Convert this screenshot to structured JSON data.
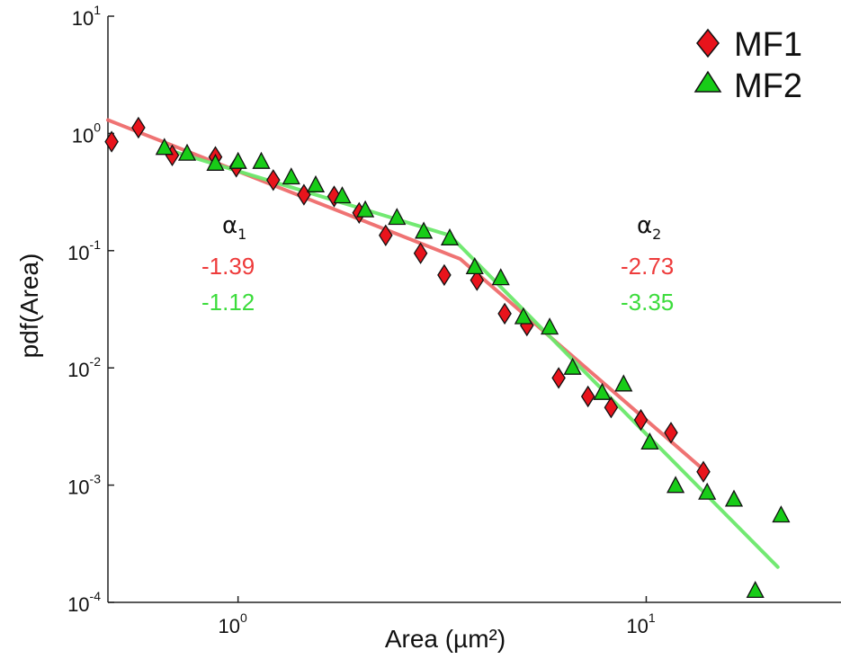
{
  "chart_data": {
    "type": "scatter",
    "title": "",
    "xlabel": "Area (µm²)",
    "ylabel": "pdf(Area)",
    "xscale": "log",
    "yscale": "log",
    "xlim": [
      0.48,
      30
    ],
    "ylim": [
      0.0001,
      10
    ],
    "x_ticks": [
      {
        "base": "10",
        "exp": "0",
        "value": 1
      },
      {
        "base": "10",
        "exp": "1",
        "value": 10
      }
    ],
    "y_ticks": [
      {
        "base": "10",
        "exp": "1",
        "value": 10
      },
      {
        "base": "10",
        "exp": "0",
        "value": 1
      },
      {
        "base": "10",
        "exp": "-1",
        "value": 0.1
      },
      {
        "base": "10",
        "exp": "-2",
        "value": 0.01
      },
      {
        "base": "10",
        "exp": "-3",
        "value": 0.001
      },
      {
        "base": "10",
        "exp": "-4",
        "value": 0.0001
      }
    ],
    "grid": false,
    "legend": "top-right",
    "series": [
      {
        "name": "MF1",
        "marker": "diamond",
        "color": "#e8141c",
        "fit_color": "#ee6b6b",
        "points": [
          [
            0.49,
            0.85
          ],
          [
            0.57,
            1.12
          ],
          [
            0.69,
            0.65
          ],
          [
            0.88,
            0.63
          ],
          [
            0.99,
            0.52
          ],
          [
            1.22,
            0.4
          ],
          [
            1.45,
            0.3
          ],
          [
            1.72,
            0.29
          ],
          [
            1.98,
            0.21
          ],
          [
            2.3,
            0.135
          ],
          [
            2.8,
            0.095
          ],
          [
            3.2,
            0.062
          ],
          [
            3.85,
            0.056
          ],
          [
            4.5,
            0.029
          ],
          [
            5.1,
            0.023
          ],
          [
            6.1,
            0.0082
          ],
          [
            7.2,
            0.0057
          ],
          [
            8.2,
            0.0046
          ],
          [
            9.7,
            0.0036
          ],
          [
            11.5,
            0.0028
          ],
          [
            13.8,
            0.0013
          ]
        ],
        "fit": [
          [
            0.48,
            1.3
          ],
          [
            3.5,
            0.085
          ],
          [
            14,
            0.0013
          ]
        ]
      },
      {
        "name": "MF2",
        "marker": "triangle",
        "color": "#18cc18",
        "fit_color": "#6ae86a",
        "points": [
          [
            0.66,
            0.75
          ],
          [
            0.75,
            0.67
          ],
          [
            0.88,
            0.55
          ],
          [
            1.0,
            0.57
          ],
          [
            1.14,
            0.57
          ],
          [
            1.35,
            0.42
          ],
          [
            1.55,
            0.36
          ],
          [
            1.8,
            0.29
          ],
          [
            2.05,
            0.22
          ],
          [
            2.45,
            0.19
          ],
          [
            2.85,
            0.145
          ],
          [
            3.3,
            0.127
          ],
          [
            3.8,
            0.072
          ],
          [
            4.4,
            0.058
          ],
          [
            5.0,
            0.027
          ],
          [
            5.8,
            0.022
          ],
          [
            6.6,
            0.01
          ],
          [
            7.8,
            0.0061
          ],
          [
            8.8,
            0.0072
          ],
          [
            10.2,
            0.0023
          ],
          [
            11.8,
            0.00098
          ],
          [
            14.1,
            0.00086
          ],
          [
            16.4,
            0.00075
          ],
          [
            18.5,
            0.000125
          ],
          [
            21.4,
            0.00055
          ]
        ],
        "fit": [
          [
            0.66,
            0.74
          ],
          [
            3.3,
            0.135
          ],
          [
            21,
            0.0002
          ]
        ]
      }
    ],
    "annotations": {
      "alpha1": {
        "symbol": "α",
        "sub": "1",
        "mf1": "-1.39",
        "mf2": "-1.12"
      },
      "alpha2": {
        "symbol": "α",
        "sub": "2",
        "mf1": "-2.73",
        "mf2": "-3.35"
      }
    }
  }
}
